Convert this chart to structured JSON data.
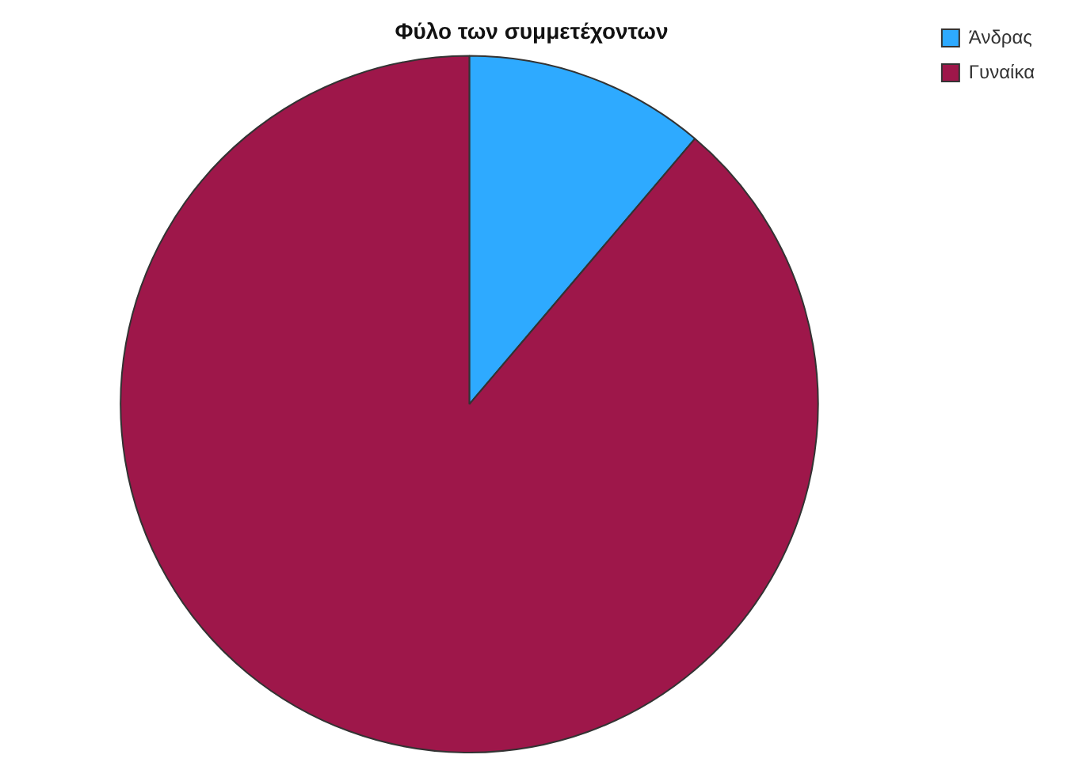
{
  "chart_data": {
    "type": "pie",
    "title": "Φύλο των συμμετέχοντων",
    "categories": [
      "Άνδρας",
      "Γυναίκα"
    ],
    "values": [
      11.2,
      88.8
    ],
    "colors": [
      "#2eaaff",
      "#9e174a"
    ],
    "legend": "top right"
  }
}
